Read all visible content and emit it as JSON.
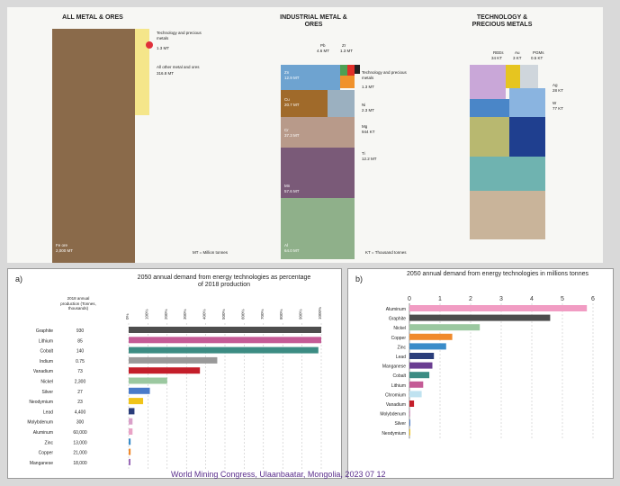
{
  "top": {
    "col1_title": "ALL METAL & ORES",
    "col2_title": "INDUSTRIAL METAL & ORES",
    "col3_title": "TECHNOLOGY & PRECIOUS METALS",
    "col1": {
      "tech_label": "Technology and precious metals",
      "tech_value": "1.3 MT",
      "other_label": "All other metal and ores",
      "other_value": "316.8 MT",
      "fe_label": "Fe ore",
      "fe_value": "2,000 MT",
      "note": "MT = Million tonnes"
    },
    "col2": {
      "pb": "Pb",
      "pb_value": "4.6 MT",
      "zr": "Zr",
      "zr_value": "1.3 MT",
      "tech_label": "Technology and precious metals",
      "tech_value": "1.3 MT",
      "ni": "Ni",
      "ni_value": "2.3 MT",
      "mg": "Mg",
      "mg_value": "944 KT",
      "ti": "Ti",
      "ti_value": "12.2 MT",
      "zn": "Zn",
      "zn_value": "12.9 MT",
      "cu": "Cu",
      "cu_value": "20.7 MT",
      "cr": "Cr",
      "cr_value": "37.3 MT",
      "mn": "Mn",
      "mn_value": "57.6 MT",
      "al": "Al",
      "al_value": "64.0 MT",
      "note": "KT = Thousand tonnes"
    },
    "col3": {
      "rees": "REEs",
      "rees_value": "34 KT",
      "au": "Au",
      "au_value": "3 KT",
      "pgms": "PGMs",
      "pgms_value": "0.5 KT",
      "ag": "Ag",
      "ag_value": "28 KT",
      "w": "W",
      "w_value": "77 KT"
    }
  },
  "panel_a": {
    "letter": "a)",
    "title": "2050 annual demand from energy technologies as percentage of 2018 production",
    "col_header": "2018 annual production (Tonnes, thousands)",
    "ticks": [
      "0%",
      "100%",
      "200%",
      "300%",
      "400%",
      "500%",
      "600%",
      "700%",
      "800%",
      "900%",
      "1000%"
    ]
  },
  "panel_b": {
    "letter": "b)",
    "title": "2050 annual demand from energy technologies in millions tonnes"
  },
  "chart_data": [
    {
      "type": "bar",
      "title": "2050 annual demand from energy technologies as percentage of 2018 production",
      "categories": [
        "Graphite",
        "Lithium",
        "Cobalt",
        "Indium",
        "Vanadium",
        "Nickel",
        "Silver",
        "Neodymium",
        "Lead",
        "Molybdenum",
        "Aluminum",
        "Zinc",
        "Copper",
        "Manganese"
      ],
      "production_2018_thousand_tonnes": [
        "930",
        "85",
        "140",
        "0.75",
        "73",
        "2,300",
        "27",
        "23",
        "4,400",
        "300",
        "60,000",
        "13,000",
        "21,000",
        "18,000"
      ],
      "values": [
        1000,
        1000,
        985,
        460,
        370,
        200,
        110,
        75,
        30,
        20,
        20,
        10,
        10,
        5
      ],
      "colors": [
        "#4d4d4d",
        "#c45b96",
        "#3c8c83",
        "#999999",
        "#c41e2a",
        "#9bc8a0",
        "#4a7bc9",
        "#f0c419",
        "#2a3d7a",
        "#d9a0c9",
        "#e9a3c6",
        "#3a8cc9",
        "#f08a2c",
        "#9a6ab8"
      ],
      "xlim": [
        0,
        1000
      ]
    },
    {
      "type": "bar",
      "title": "2050 annual demand from energy technologies in millions tonnes",
      "categories": [
        "Aluminum",
        "Graphite",
        "Nickel",
        "Copper",
        "Zinc",
        "Lead",
        "Manganese",
        "Cobalt",
        "Lithium",
        "Chromium",
        "Vanadium",
        "Molybdenum",
        "Silver",
        "Neodymium"
      ],
      "values": [
        5.8,
        4.6,
        2.3,
        1.4,
        1.2,
        0.8,
        0.75,
        0.65,
        0.45,
        0.4,
        0.15,
        0.03,
        0.02,
        0.02
      ],
      "colors": [
        "#f19cc3",
        "#4d4d4d",
        "#9bc8a0",
        "#f08a2c",
        "#3a8cc9",
        "#2a3d7a",
        "#6a3d91",
        "#3c8c83",
        "#c45b96",
        "#bfe2f0",
        "#c41e2a",
        "#d9a0c9",
        "#4a7bc9",
        "#f0c419"
      ],
      "xlim": [
        0,
        6
      ],
      "ticks": [
        "0",
        "1",
        "2",
        "3",
        "4",
        "5",
        "6"
      ]
    }
  ],
  "footer": {
    "banner": "World Mining Congress, Ulaanbaatar, Mongolia, 2023 07 12"
  }
}
